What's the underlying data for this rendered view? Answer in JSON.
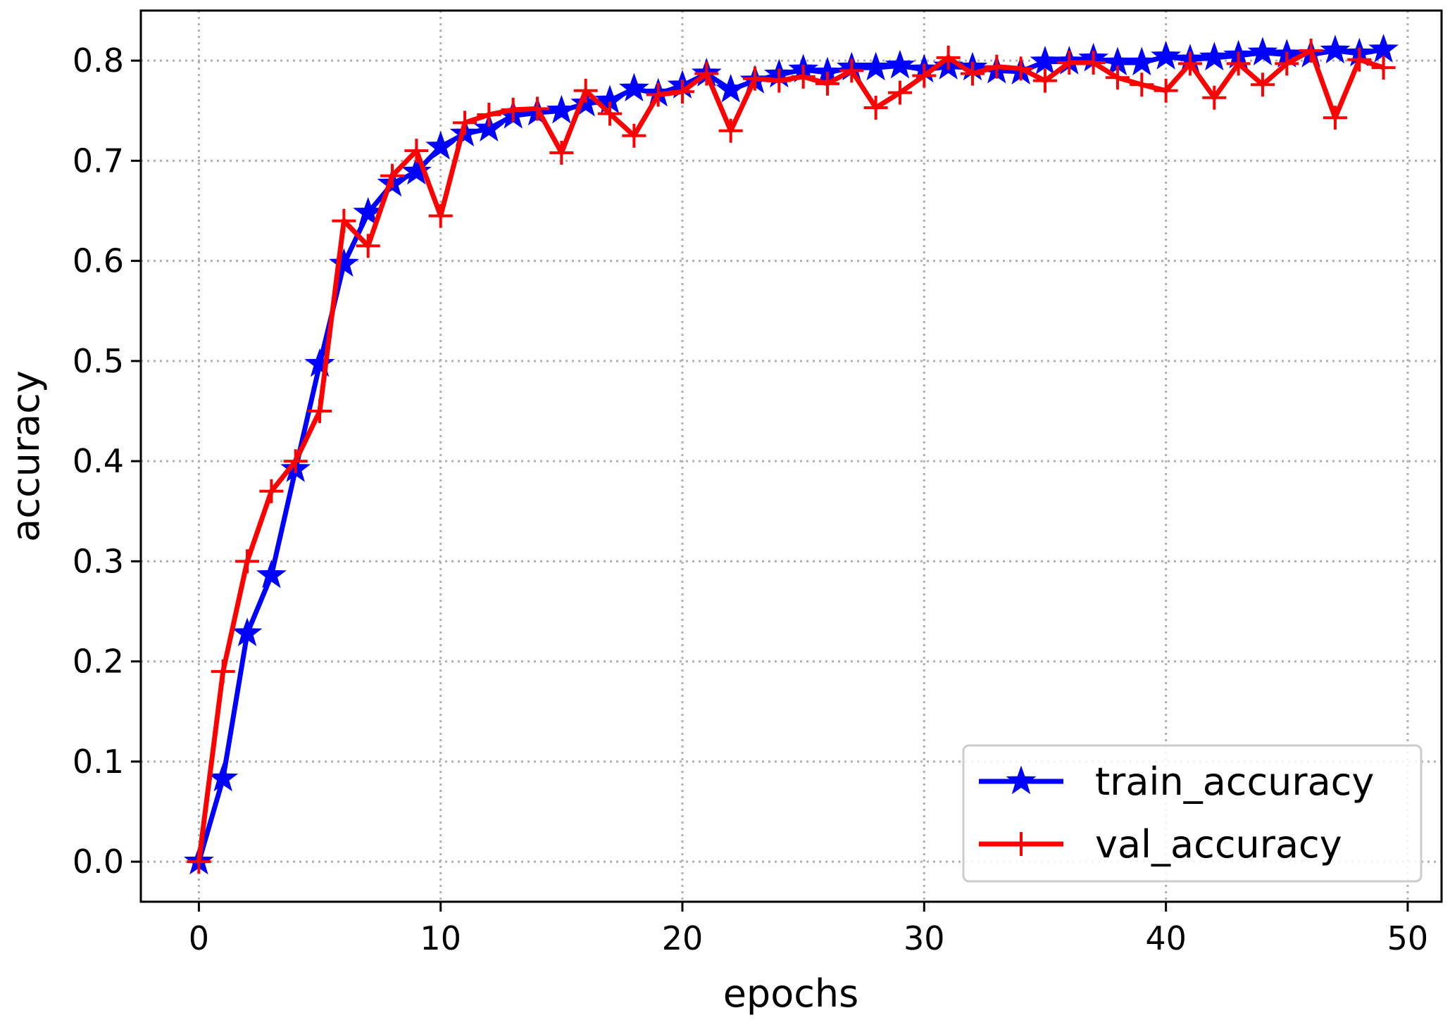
{
  "chart_data": {
    "type": "line",
    "title": "",
    "xlabel": "epochs",
    "ylabel": "accuracy",
    "xlim": [
      -2.4,
      51.4
    ],
    "ylim": [
      -0.04,
      0.85
    ],
    "xticks": [
      0,
      10,
      20,
      30,
      40,
      50
    ],
    "yticks": [
      0.0,
      0.1,
      0.2,
      0.3,
      0.4,
      0.5,
      0.6,
      0.7,
      0.8
    ],
    "xtick_labels": [
      "0",
      "10",
      "20",
      "30",
      "40",
      "50"
    ],
    "ytick_labels": [
      "0.0",
      "0.1",
      "0.2",
      "0.3",
      "0.4",
      "0.5",
      "0.6",
      "0.7",
      "0.8"
    ],
    "grid": true,
    "legend_position": "lower-right",
    "x": [
      0,
      1,
      2,
      3,
      4,
      5,
      6,
      7,
      8,
      9,
      10,
      11,
      12,
      13,
      14,
      15,
      16,
      17,
      18,
      19,
      20,
      21,
      22,
      23,
      24,
      25,
      26,
      27,
      28,
      29,
      30,
      31,
      32,
      33,
      34,
      35,
      36,
      37,
      38,
      39,
      40,
      41,
      42,
      43,
      44,
      45,
      46,
      47,
      48,
      49
    ],
    "series": [
      {
        "name": "train_accuracy",
        "color": "#0000ff",
        "marker": "star",
        "values": [
          0.0,
          0.083,
          0.228,
          0.286,
          0.392,
          0.497,
          0.597,
          0.648,
          0.677,
          0.689,
          0.714,
          0.727,
          0.732,
          0.745,
          0.748,
          0.75,
          0.757,
          0.76,
          0.772,
          0.767,
          0.775,
          0.787,
          0.771,
          0.78,
          0.786,
          0.791,
          0.788,
          0.793,
          0.793,
          0.795,
          0.791,
          0.794,
          0.793,
          0.79,
          0.789,
          0.799,
          0.799,
          0.802,
          0.798,
          0.798,
          0.804,
          0.801,
          0.803,
          0.805,
          0.808,
          0.806,
          0.806,
          0.81,
          0.807,
          0.811
        ]
      },
      {
        "name": "val_accuracy",
        "color": "#ff0000",
        "marker": "plus",
        "values": [
          0.0,
          0.19,
          0.3,
          0.37,
          0.4,
          0.45,
          0.64,
          0.615,
          0.685,
          0.71,
          0.645,
          0.738,
          0.746,
          0.751,
          0.752,
          0.708,
          0.77,
          0.747,
          0.725,
          0.766,
          0.769,
          0.787,
          0.73,
          0.782,
          0.78,
          0.784,
          0.777,
          0.79,
          0.753,
          0.768,
          0.785,
          0.803,
          0.787,
          0.794,
          0.792,
          0.78,
          0.798,
          0.798,
          0.783,
          0.776,
          0.77,
          0.797,
          0.763,
          0.797,
          0.776,
          0.797,
          0.81,
          0.743,
          0.801,
          0.793
        ]
      }
    ]
  }
}
